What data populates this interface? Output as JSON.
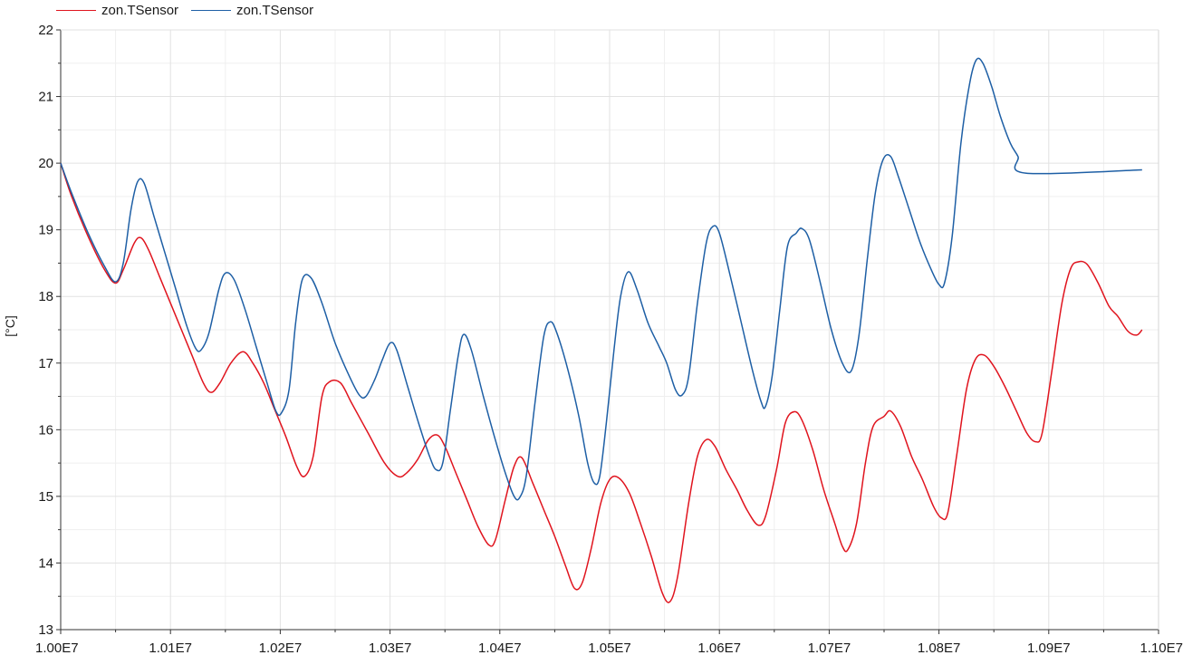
{
  "chart_data": {
    "type": "line",
    "title": "",
    "xlabel": "",
    "ylabel": "[°C]",
    "xlim": [
      10000000,
      11000000
    ],
    "ylim": [
      13,
      22
    ],
    "grid": true,
    "legend_position": "top-left",
    "x_ticks": [
      {
        "value": 10000000,
        "label": "1.00E7"
      },
      {
        "value": 10100000,
        "label": "1.01E7"
      },
      {
        "value": 10200000,
        "label": "1.02E7"
      },
      {
        "value": 10300000,
        "label": "1.03E7"
      },
      {
        "value": 10400000,
        "label": "1.04E7"
      },
      {
        "value": 10500000,
        "label": "1.05E7"
      },
      {
        "value": 10600000,
        "label": "1.06E7"
      },
      {
        "value": 10700000,
        "label": "1.07E7"
      },
      {
        "value": 10800000,
        "label": "1.08E7"
      },
      {
        "value": 10900000,
        "label": "1.09E7"
      },
      {
        "value": 11000000,
        "label": "1.10E7"
      }
    ],
    "y_ticks": [
      {
        "value": 13,
        "label": "13"
      },
      {
        "value": 14,
        "label": "14"
      },
      {
        "value": 15,
        "label": "15"
      },
      {
        "value": 16,
        "label": "16"
      },
      {
        "value": 17,
        "label": "17"
      },
      {
        "value": 18,
        "label": "18"
      },
      {
        "value": 19,
        "label": "19"
      },
      {
        "value": 20,
        "label": "20"
      },
      {
        "value": 21,
        "label": "21"
      },
      {
        "value": 22,
        "label": "22"
      }
    ],
    "series": [
      {
        "name": "zon.TSensor",
        "color": "#e0141e",
        "points": [
          [
            10000000,
            20.0
          ],
          [
            10010000,
            19.5
          ],
          [
            10025000,
            18.9
          ],
          [
            10040000,
            18.4
          ],
          [
            10050000,
            18.2
          ],
          [
            10057000,
            18.4
          ],
          [
            10067000,
            18.8
          ],
          [
            10073000,
            18.88
          ],
          [
            10080000,
            18.7
          ],
          [
            10090000,
            18.3
          ],
          [
            10100000,
            17.9
          ],
          [
            10110000,
            17.5
          ],
          [
            10120000,
            17.1
          ],
          [
            10130000,
            16.7
          ],
          [
            10137000,
            16.56
          ],
          [
            10145000,
            16.7
          ],
          [
            10155000,
            17.0
          ],
          [
            10166000,
            17.17
          ],
          [
            10175000,
            17.0
          ],
          [
            10185000,
            16.7
          ],
          [
            10195000,
            16.3
          ],
          [
            10205000,
            15.9
          ],
          [
            10215000,
            15.45
          ],
          [
            10222000,
            15.3
          ],
          [
            10230000,
            15.6
          ],
          [
            10238000,
            16.5
          ],
          [
            10245000,
            16.72
          ],
          [
            10255000,
            16.7
          ],
          [
            10265000,
            16.4
          ],
          [
            10280000,
            15.95
          ],
          [
            10295000,
            15.5
          ],
          [
            10307000,
            15.3
          ],
          [
            10315000,
            15.35
          ],
          [
            10325000,
            15.55
          ],
          [
            10335000,
            15.85
          ],
          [
            10343000,
            15.92
          ],
          [
            10350000,
            15.75
          ],
          [
            10360000,
            15.35
          ],
          [
            10370000,
            14.95
          ],
          [
            10380000,
            14.55
          ],
          [
            10390000,
            14.27
          ],
          [
            10396000,
            14.35
          ],
          [
            10405000,
            14.95
          ],
          [
            10413000,
            15.45
          ],
          [
            10420000,
            15.58
          ],
          [
            10430000,
            15.2
          ],
          [
            10440000,
            14.8
          ],
          [
            10450000,
            14.4
          ],
          [
            10460000,
            13.95
          ],
          [
            10468000,
            13.62
          ],
          [
            10475000,
            13.7
          ],
          [
            10483000,
            14.2
          ],
          [
            10492000,
            14.9
          ],
          [
            10500000,
            15.25
          ],
          [
            10508000,
            15.28
          ],
          [
            10518000,
            15.05
          ],
          [
            10528000,
            14.6
          ],
          [
            10538000,
            14.1
          ],
          [
            10548000,
            13.55
          ],
          [
            10555000,
            13.42
          ],
          [
            10562000,
            13.8
          ],
          [
            10572000,
            14.9
          ],
          [
            10580000,
            15.6
          ],
          [
            10588000,
            15.85
          ],
          [
            10596000,
            15.75
          ],
          [
            10606000,
            15.4
          ],
          [
            10616000,
            15.1
          ],
          [
            10625000,
            14.8
          ],
          [
            10635000,
            14.57
          ],
          [
            10642000,
            14.7
          ],
          [
            10652000,
            15.4
          ],
          [
            10660000,
            16.1
          ],
          [
            10668000,
            16.27
          ],
          [
            10675000,
            16.15
          ],
          [
            10685000,
            15.7
          ],
          [
            10695000,
            15.1
          ],
          [
            10705000,
            14.6
          ],
          [
            10712000,
            14.25
          ],
          [
            10717000,
            14.2
          ],
          [
            10725000,
            14.6
          ],
          [
            10733000,
            15.5
          ],
          [
            10740000,
            16.05
          ],
          [
            10750000,
            16.2
          ],
          [
            10756000,
            16.28
          ],
          [
            10765000,
            16.05
          ],
          [
            10775000,
            15.6
          ],
          [
            10785000,
            15.25
          ],
          [
            10795000,
            14.85
          ],
          [
            10802000,
            14.68
          ],
          [
            10808000,
            14.75
          ],
          [
            10816000,
            15.6
          ],
          [
            10825000,
            16.6
          ],
          [
            10833000,
            17.05
          ],
          [
            10841000,
            17.12
          ],
          [
            10850000,
            16.95
          ],
          [
            10860000,
            16.65
          ],
          [
            10870000,
            16.3
          ],
          [
            10880000,
            15.95
          ],
          [
            10888000,
            15.82
          ],
          [
            10894000,
            15.95
          ],
          [
            10903000,
            16.9
          ],
          [
            10912000,
            17.9
          ],
          [
            10920000,
            18.42
          ],
          [
            10927000,
            18.52
          ],
          [
            10935000,
            18.48
          ],
          [
            10945000,
            18.2
          ],
          [
            10955000,
            17.85
          ],
          [
            10963000,
            17.7
          ],
          [
            10972000,
            17.48
          ],
          [
            10980000,
            17.42
          ],
          [
            10985000,
            17.5
          ]
        ]
      },
      {
        "name": "zon.TSensor",
        "color": "#1e5fa5",
        "points": [
          [
            10000000,
            20.0
          ],
          [
            10010000,
            19.55
          ],
          [
            10025000,
            18.95
          ],
          [
            10040000,
            18.45
          ],
          [
            10050000,
            18.22
          ],
          [
            10057000,
            18.5
          ],
          [
            10064000,
            19.3
          ],
          [
            10070000,
            19.72
          ],
          [
            10076000,
            19.7
          ],
          [
            10085000,
            19.2
          ],
          [
            10095000,
            18.65
          ],
          [
            10105000,
            18.1
          ],
          [
            10115000,
            17.55
          ],
          [
            10123000,
            17.22
          ],
          [
            10128000,
            17.2
          ],
          [
            10135000,
            17.45
          ],
          [
            10144000,
            18.1
          ],
          [
            10150000,
            18.35
          ],
          [
            10158000,
            18.25
          ],
          [
            10168000,
            17.8
          ],
          [
            10178000,
            17.25
          ],
          [
            10188000,
            16.7
          ],
          [
            10196000,
            16.28
          ],
          [
            10201000,
            16.25
          ],
          [
            10208000,
            16.6
          ],
          [
            10214000,
            17.6
          ],
          [
            10220000,
            18.25
          ],
          [
            10228000,
            18.28
          ],
          [
            10238000,
            17.9
          ],
          [
            10250000,
            17.3
          ],
          [
            10263000,
            16.8
          ],
          [
            10272000,
            16.52
          ],
          [
            10278000,
            16.5
          ],
          [
            10286000,
            16.75
          ],
          [
            10293000,
            17.05
          ],
          [
            10300000,
            17.3
          ],
          [
            10306000,
            17.2
          ],
          [
            10316000,
            16.65
          ],
          [
            10326000,
            16.1
          ],
          [
            10336000,
            15.6
          ],
          [
            10342000,
            15.4
          ],
          [
            10348000,
            15.5
          ],
          [
            10355000,
            16.3
          ],
          [
            10362000,
            17.1
          ],
          [
            10367000,
            17.43
          ],
          [
            10374000,
            17.2
          ],
          [
            10385000,
            16.5
          ],
          [
            10395000,
            15.9
          ],
          [
            10405000,
            15.35
          ],
          [
            10413000,
            15.0
          ],
          [
            10418000,
            14.98
          ],
          [
            10424000,
            15.3
          ],
          [
            10432000,
            16.4
          ],
          [
            10440000,
            17.4
          ],
          [
            10446000,
            17.62
          ],
          [
            10452000,
            17.45
          ],
          [
            10462000,
            16.9
          ],
          [
            10472000,
            16.2
          ],
          [
            10480000,
            15.5
          ],
          [
            10486000,
            15.2
          ],
          [
            10491000,
            15.3
          ],
          [
            10497000,
            16.1
          ],
          [
            10504000,
            17.2
          ],
          [
            10510000,
            18.0
          ],
          [
            10517000,
            18.37
          ],
          [
            10525000,
            18.1
          ],
          [
            10535000,
            17.6
          ],
          [
            10545000,
            17.25
          ],
          [
            10552000,
            17.0
          ],
          [
            10560000,
            16.6
          ],
          [
            10566000,
            16.52
          ],
          [
            10572000,
            16.8
          ],
          [
            10580000,
            17.9
          ],
          [
            10588000,
            18.8
          ],
          [
            10594000,
            19.05
          ],
          [
            10600000,
            18.95
          ],
          [
            10610000,
            18.3
          ],
          [
            10620000,
            17.6
          ],
          [
            10630000,
            16.9
          ],
          [
            10638000,
            16.42
          ],
          [
            10642000,
            16.35
          ],
          [
            10648000,
            16.8
          ],
          [
            10655000,
            17.8
          ],
          [
            10662000,
            18.75
          ],
          [
            10670000,
            18.95
          ],
          [
            10675000,
            19.02
          ],
          [
            10682000,
            18.85
          ],
          [
            10692000,
            18.2
          ],
          [
            10702000,
            17.5
          ],
          [
            10712000,
            17.0
          ],
          [
            10720000,
            16.88
          ],
          [
            10727000,
            17.4
          ],
          [
            10735000,
            18.6
          ],
          [
            10742000,
            19.55
          ],
          [
            10749000,
            20.05
          ],
          [
            10756000,
            20.1
          ],
          [
            10763000,
            19.8
          ],
          [
            10773000,
            19.3
          ],
          [
            10783000,
            18.8
          ],
          [
            10793000,
            18.4
          ],
          [
            10800000,
            18.18
          ],
          [
            10805000,
            18.2
          ],
          [
            10812000,
            18.9
          ],
          [
            10820000,
            20.3
          ],
          [
            10828000,
            21.2
          ],
          [
            10834000,
            21.55
          ],
          [
            10840000,
            21.5
          ],
          [
            10848000,
            21.15
          ],
          [
            10856000,
            20.7
          ],
          [
            10865000,
            20.3
          ],
          [
            10872000,
            20.1
          ],
          [
            10879000,
            19.85
          ],
          [
            10985000,
            19.9
          ]
        ]
      }
    ]
  }
}
